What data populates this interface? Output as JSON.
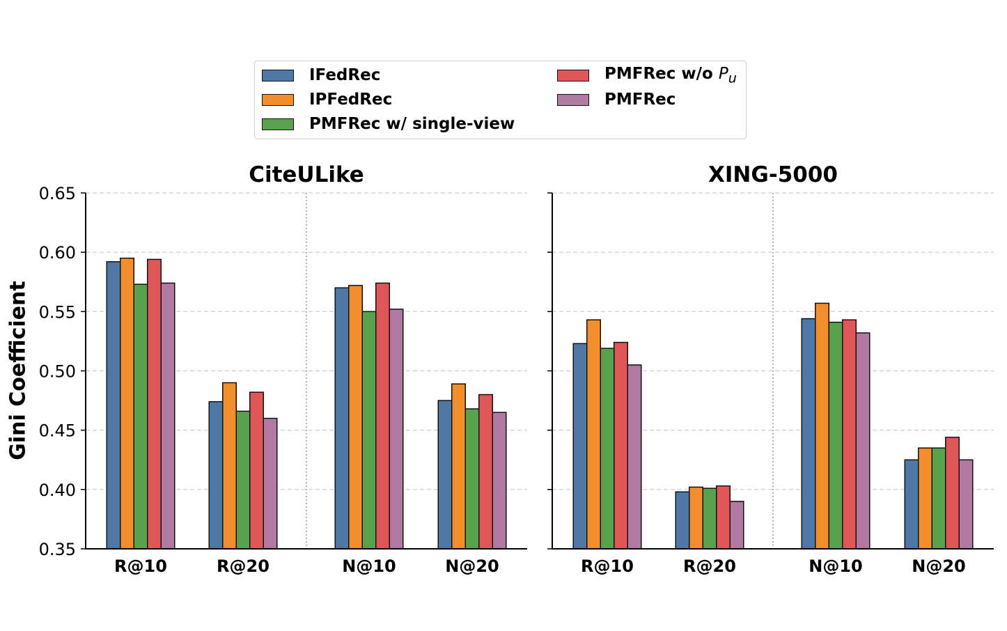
{
  "legend": {
    "items": [
      {
        "label": "IFedRec",
        "color": "#4e79a7"
      },
      {
        "label": "IPFedRec",
        "color": "#f28e2b"
      },
      {
        "label": "PMFRec w/ single-view",
        "color": "#59a14f"
      },
      {
        "label_prefix": "PMFRec w/o ",
        "label_math": "P",
        "label_sub": "u",
        "color": "#e15759"
      },
      {
        "label": "PMFRec",
        "color": "#b07aa1"
      }
    ]
  },
  "ylabel": "Gini Coefficient",
  "chart_data": [
    {
      "type": "bar",
      "title": "CiteULike",
      "categories": [
        "R@10",
        "R@20",
        "N@10",
        "N@20"
      ],
      "ylim": [
        0.35,
        0.65
      ],
      "yticks": [
        "0.35",
        "0.40",
        "0.45",
        "0.50",
        "0.55",
        "0.60",
        "0.65"
      ],
      "grid": true,
      "series": [
        {
          "name": "IFedRec",
          "values": [
            0.592,
            0.474,
            0.57,
            0.475
          ]
        },
        {
          "name": "IPFedRec",
          "values": [
            0.595,
            0.49,
            0.572,
            0.489
          ]
        },
        {
          "name": "PMFRec w/ single-view",
          "values": [
            0.573,
            0.466,
            0.55,
            0.468
          ]
        },
        {
          "name": "PMFRec w/o P_u",
          "values": [
            0.594,
            0.482,
            0.574,
            0.48
          ]
        },
        {
          "name": "PMFRec",
          "values": [
            0.574,
            0.46,
            0.552,
            0.465
          ]
        }
      ]
    },
    {
      "type": "bar",
      "title": "XING-5000",
      "categories": [
        "R@10",
        "R@20",
        "N@10",
        "N@20"
      ],
      "ylim": [
        0.35,
        0.65
      ],
      "yticks": [
        "0.35",
        "0.40",
        "0.45",
        "0.50",
        "0.55",
        "0.60",
        "0.65"
      ],
      "grid": true,
      "series": [
        {
          "name": "IFedRec",
          "values": [
            0.523,
            0.398,
            0.544,
            0.425
          ]
        },
        {
          "name": "IPFedRec",
          "values": [
            0.543,
            0.402,
            0.557,
            0.435
          ]
        },
        {
          "name": "PMFRec w/ single-view",
          "values": [
            0.519,
            0.401,
            0.541,
            0.435
          ]
        },
        {
          "name": "PMFRec w/o P_u",
          "values": [
            0.524,
            0.403,
            0.543,
            0.444
          ]
        },
        {
          "name": "PMFRec",
          "values": [
            0.505,
            0.39,
            0.532,
            0.425
          ]
        }
      ]
    }
  ]
}
